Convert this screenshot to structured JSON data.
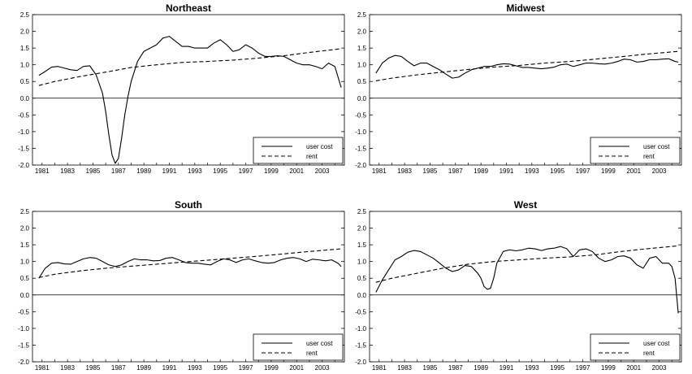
{
  "chart_data": [
    {
      "type": "line",
      "title": "Northeast",
      "xlabel": "",
      "ylabel": "",
      "xlim": [
        1980.25,
        2004.75
      ],
      "ylim": [
        -2.0,
        2.5
      ],
      "yticks": [
        "2.5",
        "2.0",
        "1.5",
        "1.0",
        "0.5",
        "0.0",
        "-0.5",
        "-1.0",
        "-1.5",
        "-2.0"
      ],
      "xticks": [
        "1981",
        "1983",
        "1985",
        "1987",
        "1989",
        "1991",
        "1993",
        "1995",
        "1997",
        "1999",
        "2001",
        "2003"
      ],
      "zero_line": true,
      "grid": false,
      "legend": "bottom-right",
      "series": [
        {
          "name": "user cost",
          "style": "solid",
          "x": [
            1980.75,
            1981.25,
            1981.75,
            1982.25,
            1982.75,
            1983.25,
            1983.75,
            1984.25,
            1984.75,
            1985.25,
            1985.75,
            1986.0,
            1986.25,
            1986.5,
            1986.75,
            1987.0,
            1987.25,
            1987.5,
            1987.75,
            1988.0,
            1988.5,
            1989.0,
            1989.5,
            1990.0,
            1990.5,
            1991.0,
            1991.5,
            1992.0,
            1992.5,
            1993.0,
            1993.5,
            1994.0,
            1994.5,
            1995.0,
            1995.5,
            1996.0,
            1996.5,
            1997.0,
            1997.5,
            1998.0,
            1998.5,
            1999.0,
            1999.5,
            2000.0,
            2000.5,
            2001.0,
            2001.5,
            2002.0,
            2002.5,
            2003.0,
            2003.5,
            2004.0,
            2004.5
          ],
          "y": [
            0.68,
            0.8,
            0.93,
            0.95,
            0.9,
            0.85,
            0.83,
            0.95,
            0.97,
            0.7,
            0.15,
            -0.4,
            -1.1,
            -1.7,
            -1.95,
            -1.8,
            -1.2,
            -0.5,
            0.05,
            0.5,
            1.1,
            1.4,
            1.5,
            1.6,
            1.8,
            1.85,
            1.7,
            1.55,
            1.55,
            1.5,
            1.5,
            1.5,
            1.65,
            1.75,
            1.6,
            1.4,
            1.45,
            1.6,
            1.5,
            1.35,
            1.25,
            1.25,
            1.27,
            1.25,
            1.15,
            1.05,
            1.0,
            1.0,
            0.95,
            0.88,
            1.05,
            0.95,
            0.32
          ]
        },
        {
          "name": "rent",
          "style": "dashed",
          "x": [
            1980.75,
            1982,
            1984,
            1986,
            1988,
            1990,
            1992,
            1994,
            1996,
            1998,
            2000,
            2002,
            2004.5
          ],
          "y": [
            0.38,
            0.5,
            0.65,
            0.78,
            0.92,
            1.0,
            1.07,
            1.1,
            1.14,
            1.2,
            1.27,
            1.37,
            1.48
          ]
        }
      ]
    },
    {
      "type": "line",
      "title": "Midwest",
      "xlabel": "",
      "ylabel": "",
      "xlim": [
        1980.25,
        2004.75
      ],
      "ylim": [
        -2.0,
        2.5
      ],
      "yticks": [
        "2.5",
        "2.0",
        "1.5",
        "1.0",
        "0.5",
        "0.0",
        "-0.5",
        "-1.0",
        "-1.5",
        "-2.0"
      ],
      "xticks": [
        "1981",
        "1983",
        "1985",
        "1987",
        "1989",
        "1991",
        "1993",
        "1995",
        "1997",
        "1999",
        "2001",
        "2003"
      ],
      "zero_line": true,
      "grid": false,
      "legend": "bottom-right",
      "series": [
        {
          "name": "user cost",
          "style": "solid",
          "x": [
            1980.75,
            1981.25,
            1981.75,
            1982.25,
            1982.75,
            1983.25,
            1983.75,
            1984.25,
            1984.75,
            1985.25,
            1985.75,
            1986.25,
            1986.75,
            1987.25,
            1987.75,
            1988.25,
            1988.75,
            1989.25,
            1989.75,
            1990.25,
            1990.75,
            1991.25,
            1991.75,
            1992.25,
            1992.75,
            1993.25,
            1993.75,
            1994.25,
            1994.75,
            1995.25,
            1995.75,
            1996.25,
            1996.75,
            1997.25,
            1997.75,
            1998.25,
            1998.75,
            1999.25,
            1999.75,
            2000.25,
            2000.75,
            2001.25,
            2001.75,
            2002.25,
            2002.75,
            2003.25,
            2003.75,
            2004.25,
            2004.5
          ],
          "y": [
            0.75,
            1.05,
            1.2,
            1.28,
            1.25,
            1.1,
            0.97,
            1.05,
            1.05,
            0.95,
            0.85,
            0.72,
            0.6,
            0.63,
            0.75,
            0.85,
            0.9,
            0.95,
            0.95,
            1.0,
            1.03,
            1.02,
            0.97,
            0.92,
            0.92,
            0.9,
            0.88,
            0.9,
            0.93,
            1.0,
            1.02,
            0.95,
            1.0,
            1.05,
            1.05,
            1.03,
            1.02,
            1.05,
            1.1,
            1.17,
            1.15,
            1.08,
            1.1,
            1.15,
            1.15,
            1.17,
            1.18,
            1.1,
            1.08
          ]
        },
        {
          "name": "rent",
          "style": "dashed",
          "x": [
            1980.75,
            1982,
            1984,
            1986,
            1988,
            1990,
            1992,
            1994,
            1996,
            1998,
            2000,
            2002,
            2004.5
          ],
          "y": [
            0.52,
            0.6,
            0.7,
            0.78,
            0.86,
            0.93,
            0.98,
            1.05,
            1.1,
            1.17,
            1.24,
            1.32,
            1.4
          ]
        }
      ]
    },
    {
      "type": "line",
      "title": "South",
      "xlabel": "",
      "ylabel": "",
      "xlim": [
        1980.25,
        2004.75
      ],
      "ylim": [
        -2.0,
        2.5
      ],
      "yticks": [
        "2.5",
        "2.0",
        "1.5",
        "1.0",
        "0.5",
        "0.0",
        "-0.5",
        "-1.0",
        "-1.5",
        "-2.0"
      ],
      "xticks": [
        "1981",
        "1983",
        "1985",
        "1987",
        "1989",
        "1991",
        "1993",
        "1995",
        "1997",
        "1999",
        "2001",
        "2003"
      ],
      "zero_line": true,
      "grid": false,
      "legend": "bottom-right",
      "series": [
        {
          "name": "user cost",
          "style": "solid",
          "x": [
            1980.75,
            1981.25,
            1981.75,
            1982.25,
            1982.75,
            1983.25,
            1983.75,
            1984.25,
            1984.75,
            1985.25,
            1985.75,
            1986.25,
            1986.75,
            1987.25,
            1987.75,
            1988.25,
            1988.75,
            1989.25,
            1989.75,
            1990.25,
            1990.75,
            1991.25,
            1991.75,
            1992.25,
            1992.75,
            1993.25,
            1993.75,
            1994.25,
            1994.75,
            1995.25,
            1995.75,
            1996.25,
            1996.75,
            1997.25,
            1997.75,
            1998.25,
            1998.75,
            1999.25,
            1999.75,
            2000.25,
            2000.75,
            2001.25,
            2001.75,
            2002.25,
            2002.75,
            2003.25,
            2003.75,
            2004.25,
            2004.5
          ],
          "y": [
            0.5,
            0.8,
            0.95,
            0.97,
            0.93,
            0.92,
            1.0,
            1.08,
            1.12,
            1.1,
            1.0,
            0.9,
            0.85,
            0.9,
            1.0,
            1.08,
            1.05,
            1.05,
            1.02,
            1.03,
            1.1,
            1.12,
            1.05,
            0.97,
            0.95,
            0.95,
            0.92,
            0.9,
            1.0,
            1.08,
            1.05,
            0.97,
            1.05,
            1.08,
            1.02,
            0.97,
            0.95,
            0.97,
            1.05,
            1.1,
            1.12,
            1.08,
            1.0,
            1.07,
            1.05,
            1.02,
            1.05,
            0.95,
            0.85
          ]
        },
        {
          "name": "rent",
          "style": "dashed",
          "x": [
            1980.75,
            1982,
            1984,
            1986,
            1988,
            1990,
            1992,
            1994,
            1996,
            1998,
            2000,
            2002,
            2004.5
          ],
          "y": [
            0.52,
            0.62,
            0.72,
            0.8,
            0.86,
            0.92,
            0.98,
            1.04,
            1.1,
            1.16,
            1.23,
            1.3,
            1.38
          ]
        }
      ]
    },
    {
      "type": "line",
      "title": "West",
      "xlabel": "",
      "ylabel": "",
      "xlim": [
        1980.25,
        2004.75
      ],
      "ylim": [
        -2.0,
        2.5
      ],
      "yticks": [
        "2.5",
        "2.0",
        "1.5",
        "1.0",
        "0.5",
        "0.0",
        "-0.5",
        "-1.0",
        "-1.5",
        "-2.0"
      ],
      "xticks": [
        "1981",
        "1983",
        "1985",
        "1987",
        "1989",
        "1991",
        "1993",
        "1995",
        "1997",
        "1999",
        "2001",
        "2003"
      ],
      "zero_line": true,
      "grid": false,
      "legend": "bottom-right",
      "series": [
        {
          "name": "user cost",
          "style": "solid",
          "x": [
            1980.75,
            1981.25,
            1981.75,
            1982.25,
            1982.75,
            1983.25,
            1983.75,
            1984.25,
            1984.75,
            1985.25,
            1985.75,
            1986.25,
            1986.75,
            1987.25,
            1987.75,
            1988.25,
            1988.75,
            1989.0,
            1989.25,
            1989.5,
            1989.75,
            1990.0,
            1990.25,
            1990.75,
            1991.25,
            1991.75,
            1992.25,
            1992.75,
            1993.25,
            1993.75,
            1994.25,
            1994.75,
            1995.25,
            1995.75,
            1996.25,
            1996.75,
            1997.25,
            1997.75,
            1998.25,
            1998.75,
            1999.25,
            1999.75,
            2000.25,
            2000.75,
            2001.25,
            2001.75,
            2002.25,
            2002.75,
            2003.25,
            2003.75,
            2004.0,
            2004.25,
            2004.5
          ],
          "y": [
            0.08,
            0.45,
            0.75,
            1.05,
            1.15,
            1.28,
            1.33,
            1.3,
            1.2,
            1.1,
            0.95,
            0.8,
            0.7,
            0.75,
            0.88,
            0.85,
            0.65,
            0.5,
            0.25,
            0.17,
            0.2,
            0.5,
            0.95,
            1.3,
            1.35,
            1.32,
            1.35,
            1.4,
            1.38,
            1.33,
            1.38,
            1.4,
            1.45,
            1.38,
            1.15,
            1.35,
            1.38,
            1.3,
            1.1,
            1.0,
            1.05,
            1.15,
            1.17,
            1.1,
            0.9,
            0.8,
            1.1,
            1.15,
            0.95,
            0.95,
            0.85,
            0.5,
            -0.55
          ]
        },
        {
          "name": "rent",
          "style": "dashed",
          "x": [
            1980.75,
            1982,
            1984,
            1986,
            1988,
            1990,
            1992,
            1994,
            1996,
            1998,
            2000,
            2002,
            2004.5
          ],
          "y": [
            0.38,
            0.5,
            0.65,
            0.8,
            0.92,
            1.0,
            1.05,
            1.1,
            1.14,
            1.2,
            1.3,
            1.38,
            1.47
          ]
        }
      ]
    }
  ]
}
